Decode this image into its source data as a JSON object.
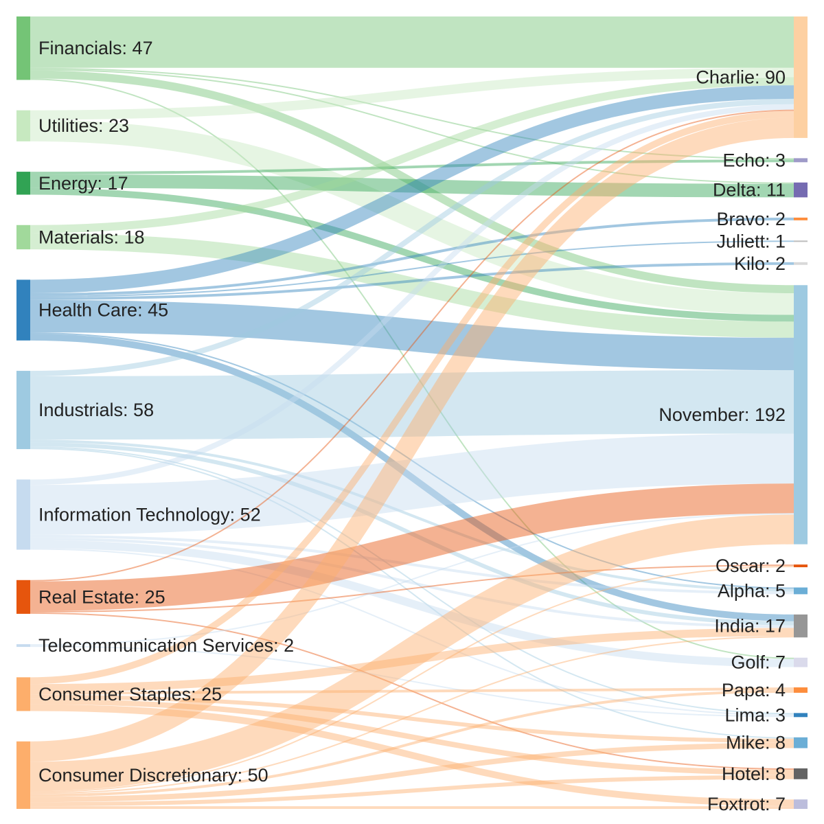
{
  "chart_data": {
    "type": "sankey",
    "title": "",
    "sources": [
      {
        "id": "financials",
        "name": "Financials",
        "value": 47,
        "color": "#74c476",
        "label": "Financials: 47"
      },
      {
        "id": "utilities",
        "name": "Utilities",
        "value": 23,
        "color": "#c7e9c0",
        "label": "Utilities: 23"
      },
      {
        "id": "energy",
        "name": "Energy",
        "value": 17,
        "color": "#31a354",
        "label": "Energy: 17"
      },
      {
        "id": "materials",
        "name": "Materials",
        "value": 18,
        "color": "#a1d99b",
        "label": "Materials: 18"
      },
      {
        "id": "health_care",
        "name": "Health Care",
        "value": 45,
        "color": "#3182bd",
        "label": "Health Care: 45"
      },
      {
        "id": "industrials",
        "name": "Industrials",
        "value": 58,
        "color": "#9ecae1",
        "label": "Industrials: 58"
      },
      {
        "id": "information_technology",
        "name": "Information Technology",
        "value": 52,
        "color": "#c6dbef",
        "label": "Information Technology: 52"
      },
      {
        "id": "real_estate",
        "name": "Real Estate",
        "value": 25,
        "color": "#e6550d",
        "label": "Real Estate: 25"
      },
      {
        "id": "telecommunication_services",
        "name": "Telecommunication Services",
        "value": 2,
        "color": "#c6dbef",
        "label": "Telecommunication Services: 2"
      },
      {
        "id": "consumer_staples",
        "name": "Consumer Staples",
        "value": 25,
        "color": "#fdae6b",
        "label": "Consumer Staples: 25"
      },
      {
        "id": "consumer_discretionary",
        "name": "Consumer Discretionary",
        "value": 50,
        "color": "#fdae6b",
        "label": "Consumer Discretionary: 50"
      }
    ],
    "targets": [
      {
        "id": "charlie",
        "name": "Charlie",
        "value": 90,
        "color": "#fdd0a2",
        "label": "Charlie: 90"
      },
      {
        "id": "echo",
        "name": "Echo",
        "value": 3,
        "color": "#9e9ac8",
        "label": "Echo: 3"
      },
      {
        "id": "delta",
        "name": "Delta",
        "value": 11,
        "color": "#756bb1",
        "label": "Delta: 11"
      },
      {
        "id": "bravo",
        "name": "Bravo",
        "value": 2,
        "color": "#fd8d3c",
        "label": "Bravo: 2"
      },
      {
        "id": "juliett",
        "name": "Juliett",
        "value": 1,
        "color": "#bdbdbd",
        "label": "Juliett: 1"
      },
      {
        "id": "kilo",
        "name": "Kilo",
        "value": 2,
        "color": "#d9d9d9",
        "label": "Kilo: 2"
      },
      {
        "id": "november",
        "name": "November",
        "value": 192,
        "color": "#9ecae1",
        "label": "November: 192"
      },
      {
        "id": "oscar",
        "name": "Oscar",
        "value": 2,
        "color": "#e6550d",
        "label": "Oscar: 2"
      },
      {
        "id": "alpha",
        "name": "Alpha",
        "value": 5,
        "color": "#6baed6",
        "label": "Alpha: 5"
      },
      {
        "id": "india",
        "name": "India",
        "value": 17,
        "color": "#969696",
        "label": "India: 17"
      },
      {
        "id": "golf",
        "name": "Golf",
        "value": 7,
        "color": "#dadaeb",
        "label": "Golf: 7"
      },
      {
        "id": "papa",
        "name": "Papa",
        "value": 4,
        "color": "#fd8d3c",
        "label": "Papa: 4"
      },
      {
        "id": "lima",
        "name": "Lima",
        "value": 3,
        "color": "#3182bd",
        "label": "Lima: 3"
      },
      {
        "id": "mike",
        "name": "Mike",
        "value": 8,
        "color": "#6baed6",
        "label": "Mike: 8"
      },
      {
        "id": "hotel",
        "name": "Hotel",
        "value": 8,
        "color": "#636363",
        "label": "Hotel: 8"
      },
      {
        "id": "foxtrot",
        "name": "Foxtrot",
        "value": 7,
        "color": "#bcbddc",
        "label": "Foxtrot: 7"
      }
    ],
    "links": [
      {
        "source": "financials",
        "target": "charlie",
        "value": 38
      },
      {
        "source": "financials",
        "target": "echo",
        "value": 1
      },
      {
        "source": "financials",
        "target": "delta",
        "value": 1
      },
      {
        "source": "financials",
        "target": "november",
        "value": 6
      },
      {
        "source": "financials",
        "target": "golf",
        "value": 1
      },
      {
        "source": "utilities",
        "target": "charlie",
        "value": 7
      },
      {
        "source": "utilities",
        "target": "november",
        "value": 16
      },
      {
        "source": "energy",
        "target": "echo",
        "value": 2
      },
      {
        "source": "energy",
        "target": "delta",
        "value": 10
      },
      {
        "source": "energy",
        "target": "november",
        "value": 5
      },
      {
        "source": "materials",
        "target": "charlie",
        "value": 6
      },
      {
        "source": "materials",
        "target": "november",
        "value": 12
      },
      {
        "source": "health_care",
        "target": "charlie",
        "value": 10
      },
      {
        "source": "health_care",
        "target": "bravo",
        "value": 2
      },
      {
        "source": "health_care",
        "target": "juliett",
        "value": 1
      },
      {
        "source": "health_care",
        "target": "kilo",
        "value": 2
      },
      {
        "source": "health_care",
        "target": "november",
        "value": 24
      },
      {
        "source": "health_care",
        "target": "alpha",
        "value": 1
      },
      {
        "source": "health_care",
        "target": "india",
        "value": 5
      },
      {
        "source": "industrials",
        "target": "charlie",
        "value": 4
      },
      {
        "source": "industrials",
        "target": "november",
        "value": 47
      },
      {
        "source": "industrials",
        "target": "alpha",
        "value": 2
      },
      {
        "source": "industrials",
        "target": "india",
        "value": 3
      },
      {
        "source": "industrials",
        "target": "lima",
        "value": 1
      },
      {
        "source": "industrials",
        "target": "mike",
        "value": 1
      },
      {
        "source": "information_technology",
        "target": "charlie",
        "value": 4
      },
      {
        "source": "information_technology",
        "target": "november",
        "value": 37
      },
      {
        "source": "information_technology",
        "target": "alpha",
        "value": 2
      },
      {
        "source": "information_technology",
        "target": "india",
        "value": 2
      },
      {
        "source": "information_technology",
        "target": "golf",
        "value": 6
      },
      {
        "source": "information_technology",
        "target": "lima",
        "value": 1
      },
      {
        "source": "real_estate",
        "target": "charlie",
        "value": 1
      },
      {
        "source": "real_estate",
        "target": "november",
        "value": 22
      },
      {
        "source": "real_estate",
        "target": "oscar",
        "value": 1
      },
      {
        "source": "real_estate",
        "target": "hotel",
        "value": 1
      },
      {
        "source": "telecommunication_services",
        "target": "november",
        "value": 1
      },
      {
        "source": "telecommunication_services",
        "target": "lima",
        "value": 1
      },
      {
        "source": "consumer_staples",
        "target": "charlie",
        "value": 5
      },
      {
        "source": "consumer_staples",
        "target": "india",
        "value": 6
      },
      {
        "source": "consumer_staples",
        "target": "papa",
        "value": 2
      },
      {
        "source": "consumer_staples",
        "target": "mike",
        "value": 3
      },
      {
        "source": "consumer_staples",
        "target": "hotel",
        "value": 4
      },
      {
        "source": "consumer_staples",
        "target": "foxtrot",
        "value": 5
      },
      {
        "source": "consumer_discretionary",
        "target": "charlie",
        "value": 15
      },
      {
        "source": "consumer_discretionary",
        "target": "november",
        "value": 22
      },
      {
        "source": "consumer_discretionary",
        "target": "oscar",
        "value": 1
      },
      {
        "source": "consumer_discretionary",
        "target": "india",
        "value": 1
      },
      {
        "source": "consumer_discretionary",
        "target": "papa",
        "value": 2
      },
      {
        "source": "consumer_discretionary",
        "target": "mike",
        "value": 4
      },
      {
        "source": "consumer_discretionary",
        "target": "hotel",
        "value": 3
      },
      {
        "source": "consumer_discretionary",
        "target": "foxtrot",
        "value": 2
      }
    ]
  }
}
